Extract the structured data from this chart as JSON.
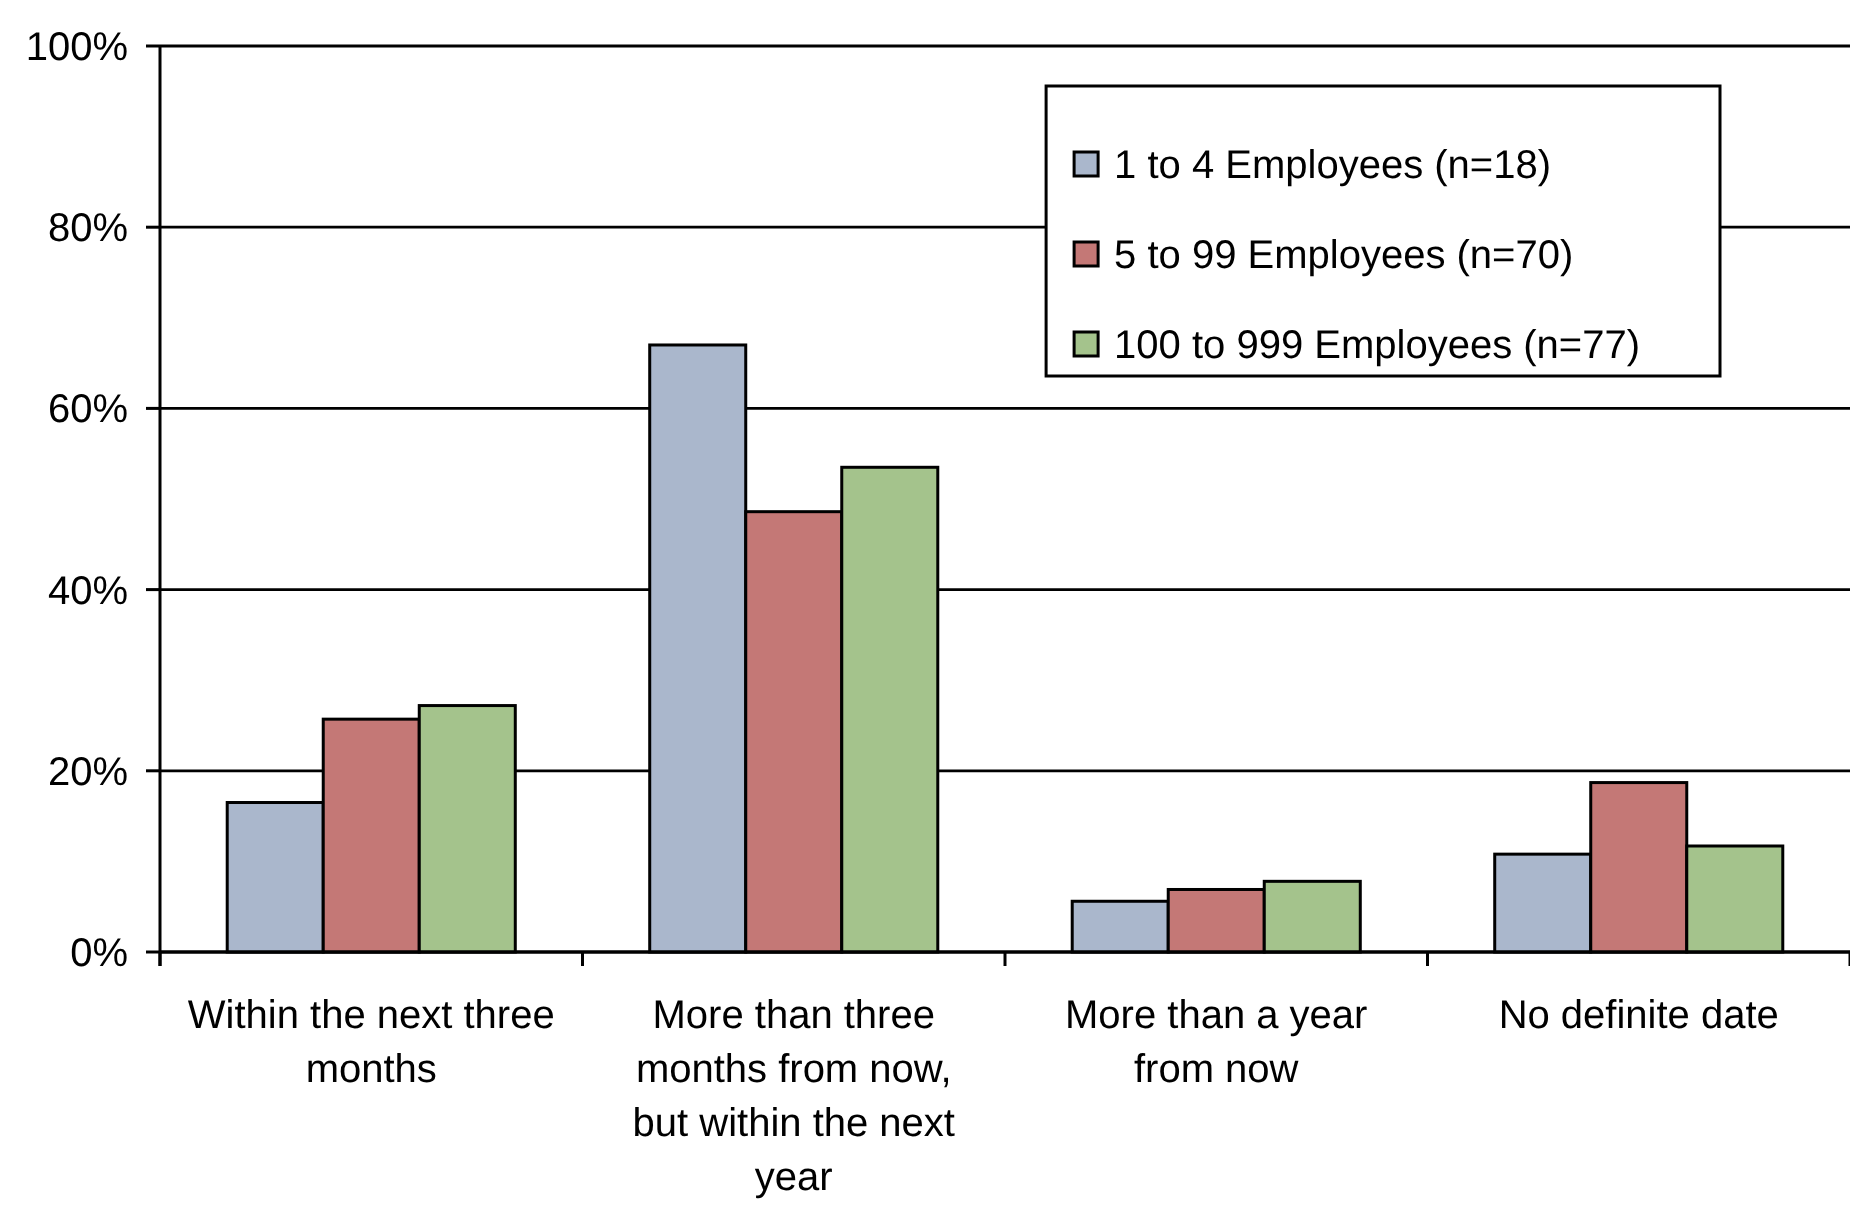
{
  "chart_data": {
    "type": "bar",
    "categories": [
      "Within the next three months",
      "More than three months from now, but within the next year",
      "More than a year from now",
      "No definite date"
    ],
    "series": [
      {
        "name": "1 to 4 Employees (n=18)",
        "color": "#aab7cc",
        "values": [
          16.5,
          67,
          5.6,
          10.8
        ]
      },
      {
        "name": "5 to 99 Employees (n=70)",
        "color": "#c47876",
        "values": [
          25.7,
          48.6,
          6.9,
          18.7
        ]
      },
      {
        "name": "100 to 999 Employees (n=77)",
        "color": "#a4c38c",
        "values": [
          27.2,
          53.5,
          7.8,
          11.7
        ]
      }
    ],
    "ylim": [
      0,
      100
    ],
    "yticks": [
      {
        "value": 0,
        "label": "0%"
      },
      {
        "value": 20,
        "label": "20%"
      },
      {
        "value": 40,
        "label": "40%"
      },
      {
        "value": 60,
        "label": "60%"
      },
      {
        "value": 80,
        "label": "80%"
      },
      {
        "value": 100,
        "label": "100%"
      }
    ],
    "grid": "y",
    "legend": "top right"
  }
}
